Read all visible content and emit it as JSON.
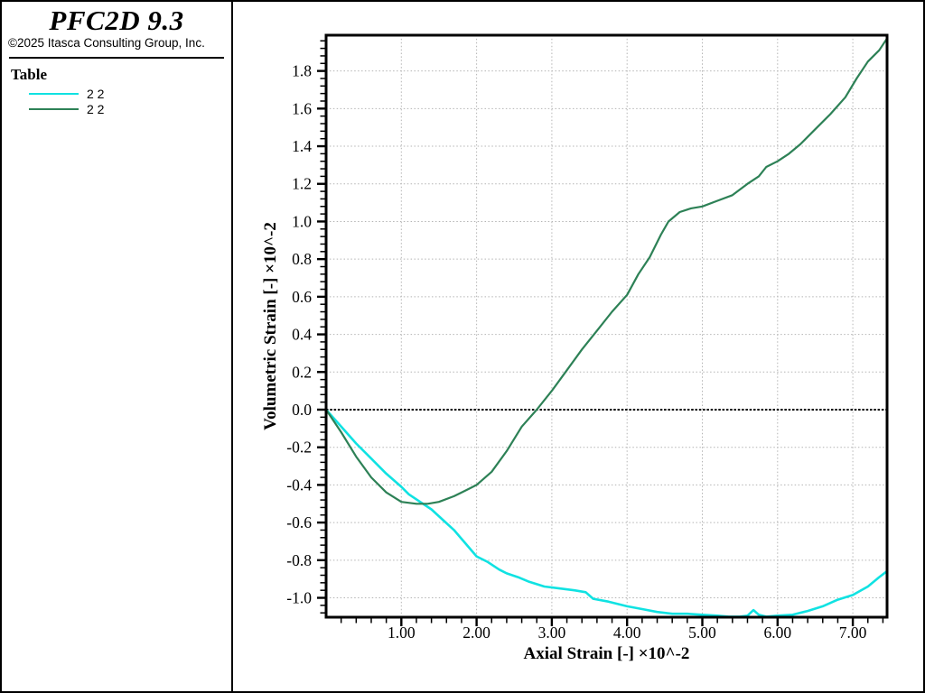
{
  "window": {
    "title": "PFC2D 9.3",
    "copyright": "©2025 Itasca Consulting Group, Inc."
  },
  "legend": {
    "title": "Table"
  },
  "chart_data": {
    "type": "line",
    "title": "",
    "xlabel": "Axial Strain [-] ×10^-2",
    "ylabel": "Volumetric Strain [-] ×10^-2",
    "xlim": [
      0,
      7.455
    ],
    "ylim": [
      -1.103,
      1.99
    ],
    "grid": true,
    "grid_style": "dotted",
    "zero_line": true,
    "legend_position": "left-panel",
    "x_major_ticks": [
      1,
      2,
      3,
      4,
      5,
      6,
      7
    ],
    "x_tick_labels": [
      "1.00",
      "2.00",
      "3.00",
      "4.00",
      "5.00",
      "6.00",
      "7.00"
    ],
    "x_minor_step": 0.2,
    "y_major_ticks": [
      -1.0,
      -0.8,
      -0.6,
      -0.4,
      -0.2,
      0.0,
      0.2,
      0.4,
      0.6,
      0.8,
      1.0,
      1.2,
      1.4,
      1.6,
      1.8
    ],
    "y_tick_labels": [
      "-1.0",
      "-0.8",
      "-0.6",
      "-0.4",
      "-0.2",
      "0.0",
      "0.2",
      "0.4",
      "0.6",
      "0.8",
      "1.0",
      "1.2",
      "1.4",
      "1.6",
      "1.8"
    ],
    "y_minor_step": 0.04,
    "series": [
      {
        "name": "2 2",
        "color": "#10e2e2",
        "x": [
          0,
          0.2,
          0.4,
          0.6,
          0.8,
          1.0,
          1.1,
          1.25,
          1.4,
          1.55,
          1.7,
          1.85,
          2.0,
          2.15,
          2.3,
          2.4,
          2.55,
          2.7,
          2.9,
          3.1,
          3.3,
          3.45,
          3.55,
          3.75,
          4.0,
          4.2,
          4.4,
          4.6,
          4.8,
          5.0,
          5.2,
          5.35,
          5.5,
          5.6,
          5.68,
          5.75,
          5.85,
          6.0,
          6.2,
          6.4,
          6.6,
          6.8,
          7.0,
          7.2,
          7.35,
          7.45
        ],
        "y": [
          0,
          -0.09,
          -0.18,
          -0.26,
          -0.34,
          -0.41,
          -0.45,
          -0.49,
          -0.53,
          -0.585,
          -0.64,
          -0.71,
          -0.78,
          -0.81,
          -0.85,
          -0.87,
          -0.89,
          -0.915,
          -0.94,
          -0.95,
          -0.96,
          -0.97,
          -1.005,
          -1.02,
          -1.045,
          -1.06,
          -1.075,
          -1.085,
          -1.085,
          -1.09,
          -1.095,
          -1.1,
          -1.1,
          -1.095,
          -1.065,
          -1.09,
          -1.1,
          -1.095,
          -1.09,
          -1.07,
          -1.045,
          -1.01,
          -0.985,
          -0.94,
          -0.89,
          -0.86
        ]
      },
      {
        "name": "2 2",
        "color": "#2d8156",
        "x": [
          0,
          0.2,
          0.4,
          0.6,
          0.8,
          1.0,
          1.2,
          1.35,
          1.5,
          1.7,
          1.9,
          2.0,
          2.2,
          2.4,
          2.6,
          2.8,
          3.0,
          3.2,
          3.4,
          3.6,
          3.8,
          4.0,
          4.15,
          4.3,
          4.45,
          4.55,
          4.7,
          4.85,
          5.0,
          5.2,
          5.4,
          5.6,
          5.75,
          5.85,
          6.0,
          6.15,
          6.3,
          6.5,
          6.7,
          6.9,
          7.05,
          7.2,
          7.35,
          7.45
        ],
        "y": [
          0,
          -0.12,
          -0.25,
          -0.36,
          -0.44,
          -0.49,
          -0.5,
          -0.5,
          -0.49,
          -0.46,
          -0.42,
          -0.4,
          -0.33,
          -0.22,
          -0.09,
          0.0,
          0.1,
          0.21,
          0.32,
          0.42,
          0.52,
          0.61,
          0.72,
          0.81,
          0.93,
          1.0,
          1.05,
          1.07,
          1.08,
          1.11,
          1.14,
          1.2,
          1.24,
          1.29,
          1.32,
          1.36,
          1.41,
          1.49,
          1.57,
          1.66,
          1.76,
          1.85,
          1.91,
          1.97
        ]
      }
    ],
    "style": {
      "frame_color": "#000000",
      "grid_color": "#b4b4b4",
      "zero_line_color": "#000000",
      "tick_color": "#000000",
      "label_color": "#000000"
    }
  }
}
